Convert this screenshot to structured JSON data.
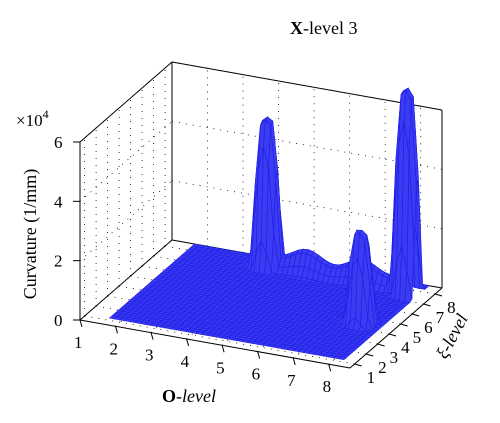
{
  "chart_data": {
    "type": "surface3d",
    "title_bold": "X",
    "title_rest": "-level 3",
    "zlabel": "Curvature (1/mm)",
    "xlabel_bold": "O",
    "xlabel_rest": "-level",
    "ylabel": "ξ-level",
    "zscale_label": "×10",
    "zscale_exp": "4",
    "x_ticks": [
      "1",
      "2",
      "3",
      "4",
      "5",
      "6",
      "7",
      "8"
    ],
    "y_ticks": [
      "1",
      "2",
      "3",
      "4",
      "5",
      "6",
      "7",
      "8"
    ],
    "z_ticks": [
      "0",
      "2",
      "4",
      "6"
    ],
    "xlim": [
      1,
      8.6
    ],
    "ylim": [
      0.6,
      8.6
    ],
    "zlim": [
      0,
      6
    ],
    "surface_color": "#1f1fe6",
    "grid": "dotted",
    "peaks": [
      {
        "x": 4.0,
        "y": 7.6,
        "height": 5.1
      },
      {
        "x": 8.0,
        "y": 7.4,
        "height": 7.0
      },
      {
        "x": 7.7,
        "y": 4.3,
        "height": 3.2
      }
    ],
    "ridges": [
      {
        "x_from": 4.0,
        "x_to": 8.0,
        "y": 7.6,
        "height": 0.9
      }
    ]
  }
}
